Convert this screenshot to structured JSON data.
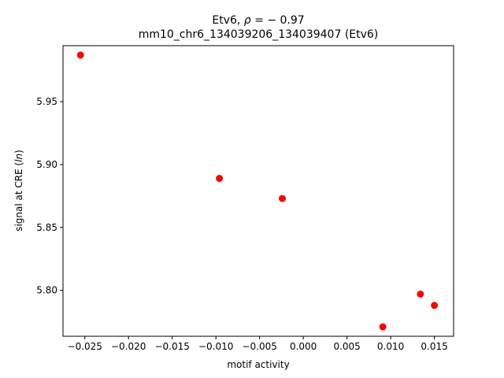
{
  "chart_data": {
    "type": "scatter",
    "title_line1_prefix": "Etv6, ",
    "title_line1_symbol": "ρ",
    "title_line1_suffix": " = − 0.97",
    "title_line2": "mm10_chr6_134039206_134039407 (Etv6)",
    "xlabel": "motif activity",
    "ylabel_prefix": "signal at CRE (",
    "ylabel_italic": "ln",
    "ylabel_suffix": ")",
    "xlim": [
      -0.0275,
      0.0172
    ],
    "ylim": [
      5.7635,
      5.9945
    ],
    "xticks": [
      -0.025,
      -0.02,
      -0.015,
      -0.01,
      -0.005,
      0.0,
      0.005,
      0.01,
      0.015
    ],
    "xtick_labels": [
      "−0.025",
      "−0.020",
      "−0.015",
      "−0.010",
      "−0.005",
      "0.000",
      "0.005",
      "0.010",
      "0.015"
    ],
    "yticks": [
      5.8,
      5.85,
      5.9,
      5.95
    ],
    "ytick_labels": [
      "5.80",
      "5.85",
      "5.90",
      "5.95"
    ],
    "point_color": "#ff0000",
    "points": [
      {
        "x": -0.0255,
        "y": 5.987
      },
      {
        "x": -0.0096,
        "y": 5.889
      },
      {
        "x": -0.0024,
        "y": 5.873
      },
      {
        "x": 0.0091,
        "y": 5.771
      },
      {
        "x": 0.0134,
        "y": 5.797
      },
      {
        "x": 0.015,
        "y": 5.788
      }
    ],
    "grid": false,
    "legend": "none"
  }
}
